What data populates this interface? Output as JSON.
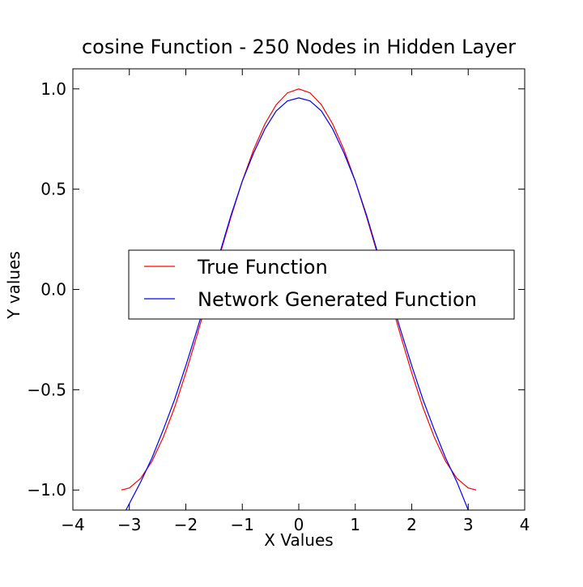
{
  "chart_data": {
    "type": "line",
    "title": "cosine Function - 250 Nodes in Hidden Layer",
    "xlabel": "X Values",
    "ylabel": "Y values",
    "xlim": [
      -4,
      4
    ],
    "ylim": [
      -1.1,
      1.1
    ],
    "xticks": [
      -4,
      -3,
      -2,
      -1,
      0,
      1,
      2,
      3,
      4
    ],
    "xtick_labels": [
      "−4",
      "−3",
      "−2",
      "−1",
      "0",
      "1",
      "2",
      "3",
      "4"
    ],
    "yticks": [
      -1.0,
      -0.5,
      0.0,
      0.5,
      1.0
    ],
    "ytick_labels": [
      "−1.0",
      "−0.5",
      "0.0",
      "0.5",
      "1.0"
    ],
    "grid": false,
    "legend_position": "center",
    "series": [
      {
        "name": "True Function",
        "color": "#ff0000",
        "x": [
          -3.14,
          -3.0,
          -2.8,
          -2.6,
          -2.4,
          -2.2,
          -2.0,
          -1.8,
          -1.6,
          -1.4,
          -1.2,
          -1.0,
          -0.8,
          -0.6,
          -0.4,
          -0.2,
          0.0,
          0.2,
          0.4,
          0.6,
          0.8,
          1.0,
          1.2,
          1.4,
          1.6,
          1.8,
          2.0,
          2.2,
          2.4,
          2.6,
          2.8,
          3.0,
          3.14
        ],
        "y": [
          -1.0,
          -0.99,
          -0.942,
          -0.857,
          -0.737,
          -0.589,
          -0.416,
          -0.227,
          -0.029,
          0.17,
          0.362,
          0.54,
          0.697,
          0.825,
          0.921,
          0.98,
          1.0,
          0.98,
          0.921,
          0.825,
          0.697,
          0.54,
          0.362,
          0.17,
          -0.029,
          -0.227,
          -0.416,
          -0.589,
          -0.737,
          -0.857,
          -0.942,
          -0.99,
          -1.0
        ]
      },
      {
        "name": "Network Generated Function",
        "color": "#0000ff",
        "x": [
          -3.06,
          -2.8,
          -2.6,
          -2.4,
          -2.2,
          -2.0,
          -1.8,
          -1.6,
          -1.4,
          -1.2,
          -1.0,
          -0.8,
          -0.6,
          -0.4,
          -0.2,
          0.0,
          0.2,
          0.4,
          0.6,
          0.8,
          1.0,
          1.2,
          1.4,
          1.6,
          1.8,
          2.0,
          2.2,
          2.4,
          2.6,
          2.8,
          3.0
        ],
        "y": [
          -1.1,
          -0.96,
          -0.84,
          -0.7,
          -0.55,
          -0.38,
          -0.2,
          -0.01,
          0.18,
          0.37,
          0.54,
          0.68,
          0.8,
          0.89,
          0.94,
          0.955,
          0.94,
          0.89,
          0.8,
          0.68,
          0.54,
          0.37,
          0.18,
          -0.01,
          -0.2,
          -0.38,
          -0.55,
          -0.7,
          -0.84,
          -0.96,
          -1.1
        ]
      }
    ]
  }
}
